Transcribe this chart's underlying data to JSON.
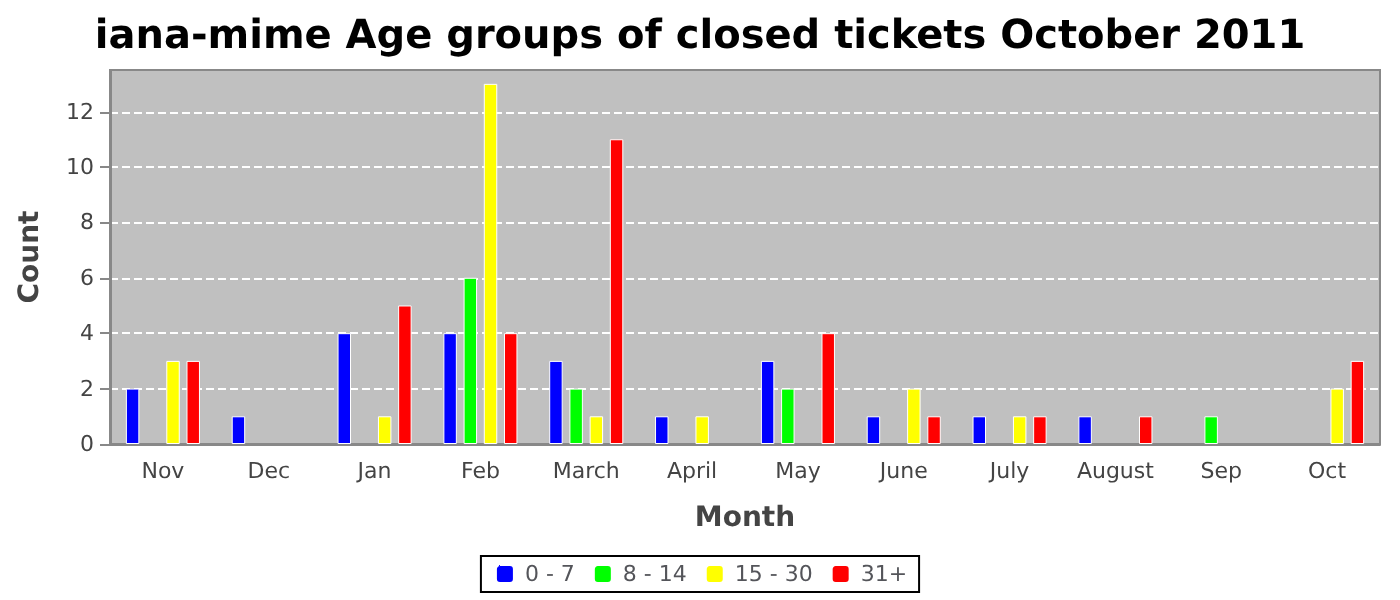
{
  "chart_data": {
    "type": "bar",
    "title": "iana-mime Age groups of closed tickets October 2011",
    "xlabel": "Month",
    "ylabel": "Count",
    "categories": [
      "Nov",
      "Dec",
      "Jan",
      "Feb",
      "March",
      "April",
      "May",
      "June",
      "July",
      "August",
      "Sep",
      "Oct"
    ],
    "series": [
      {
        "name": "0 - 7",
        "color": "#0000ff",
        "values": [
          2,
          1,
          4,
          4,
          3,
          1,
          3,
          1,
          1,
          1,
          null,
          null
        ]
      },
      {
        "name": "8 - 14",
        "color": "#00ff00",
        "values": [
          null,
          null,
          null,
          6,
          2,
          null,
          2,
          null,
          null,
          null,
          1,
          null
        ]
      },
      {
        "name": "15 - 30",
        "color": "#ffff00",
        "values": [
          3,
          null,
          1,
          13,
          1,
          1,
          null,
          2,
          1,
          null,
          null,
          2
        ]
      },
      {
        "name": "31+",
        "color": "#ff0000",
        "values": [
          3,
          null,
          5,
          4,
          11,
          null,
          4,
          1,
          1,
          1,
          null,
          3
        ]
      }
    ],
    "ylim": [
      0,
      13.5
    ],
    "yticks": [
      0,
      2,
      4,
      6,
      8,
      10,
      12
    ],
    "grid": "y",
    "legend": "bottom"
  }
}
